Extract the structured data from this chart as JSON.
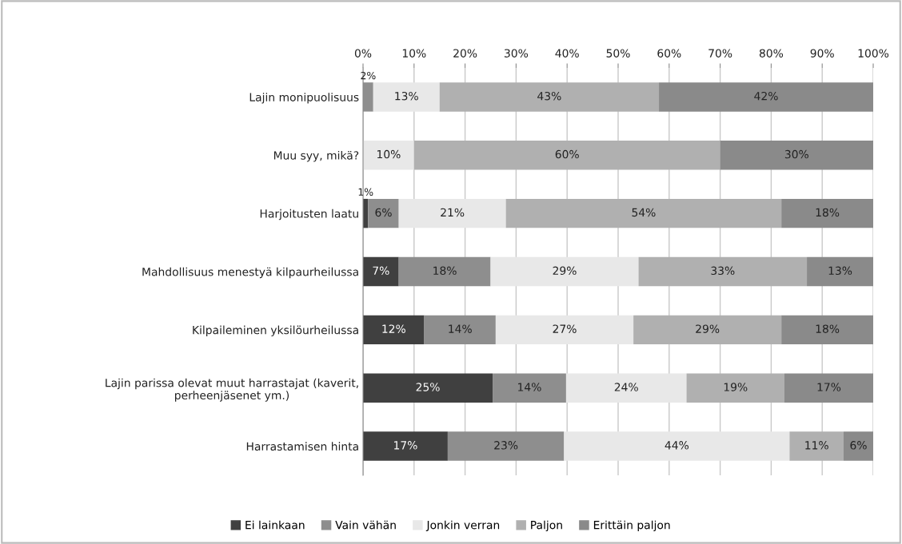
{
  "chart_data": {
    "type": "bar",
    "orientation": "horizontal",
    "stacked": true,
    "categories": [
      "Lajin monipuolisuus",
      "Muu syy, mikä?",
      "Harjoitusten laatu",
      "Mahdollisuus menestyä kilpaurheilussa",
      "Kilpaileminen yksilöurheilussa",
      "Lajin parissa olevat muut harrastajat (kaverit,\nperheenjäsenet ym.)",
      "Harrastamisen hinta"
    ],
    "series": [
      {
        "name": "Ei lainkaan",
        "color": "#404040",
        "values": [
          null,
          null,
          1,
          7,
          12,
          25.4,
          16.6
        ],
        "value_labels": [
          null,
          null,
          "1%",
          "7%",
          "12%",
          "25%",
          "17%"
        ]
      },
      {
        "name": "Vain vähän",
        "color": "#8e8e8e",
        "values": [
          2,
          null,
          6,
          18,
          14,
          14.4,
          22.8
        ],
        "value_labels": [
          "2%",
          null,
          "6%",
          "18%",
          "14%",
          "14%",
          "23%"
        ]
      },
      {
        "name": "Jonkin verran",
        "color": "#e8e8e8",
        "values": [
          13,
          10,
          21,
          29,
          27,
          23.6,
          44.2
        ],
        "value_labels": [
          "13%",
          "10%",
          "21%",
          "29%",
          "27%",
          "24%",
          "44%"
        ]
      },
      {
        "name": "Paljon",
        "color": "#b0b0b0",
        "values": [
          43,
          60,
          54,
          33,
          29,
          19.2,
          10.6
        ],
        "value_labels": [
          "43%",
          "60%",
          "54%",
          "33%",
          "29%",
          "19%",
          "11%"
        ]
      },
      {
        "name": "Erittäin paljon",
        "color": "#8a8a8a",
        "values": [
          42,
          30,
          18,
          13,
          18,
          17.4,
          5.8
        ],
        "value_labels": [
          "42%",
          "30%",
          "18%",
          "13%",
          "18%",
          "17%",
          "6%"
        ]
      }
    ],
    "xlim": [
      0,
      100
    ],
    "xticks": [
      {
        "value": 0,
        "label": "0%"
      },
      {
        "value": 10,
        "label": "10%"
      },
      {
        "value": 20,
        "label": "20%"
      },
      {
        "value": 30,
        "label": "30%"
      },
      {
        "value": 40,
        "label": "40%"
      },
      {
        "value": 50,
        "label": "50%"
      },
      {
        "value": 60,
        "label": "60%"
      },
      {
        "value": 70,
        "label": "70%"
      },
      {
        "value": 80,
        "label": "80%"
      },
      {
        "value": 90,
        "label": "90%"
      },
      {
        "value": 100,
        "label": "100%"
      }
    ],
    "grid": "x",
    "legend": "bottom"
  }
}
